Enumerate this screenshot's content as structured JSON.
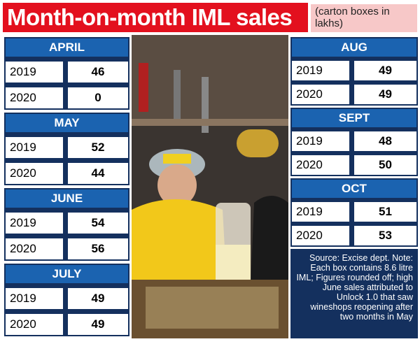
{
  "header": {
    "title": "Month-on-month IML sales",
    "subtitle": "(carton boxes in lakhs)"
  },
  "left": [
    {
      "name": "APRIL",
      "rows": [
        [
          2019,
          46
        ],
        [
          2020,
          0
        ]
      ]
    },
    {
      "name": "MAY",
      "rows": [
        [
          2019,
          52
        ],
        [
          2020,
          44
        ]
      ]
    },
    {
      "name": "JUNE",
      "rows": [
        [
          2019,
          54
        ],
        [
          2020,
          56
        ]
      ]
    },
    {
      "name": "JULY",
      "rows": [
        [
          2019,
          49
        ],
        [
          2020,
          49
        ]
      ]
    }
  ],
  "right": [
    {
      "name": "AUG",
      "rows": [
        [
          2019,
          49
        ],
        [
          2020,
          49
        ]
      ]
    },
    {
      "name": "SEPT",
      "rows": [
        [
          2019,
          48
        ],
        [
          2020,
          50
        ]
      ]
    },
    {
      "name": "OCT",
      "rows": [
        [
          2019,
          51
        ],
        [
          2020,
          53
        ]
      ]
    }
  ],
  "note": "Source: Excise dept. Note: Each box contains 8.6 litre IML; Figures rounded off; high June sales attributed to Unlock 1.0 that saw wineshops reopening after two months in May"
}
